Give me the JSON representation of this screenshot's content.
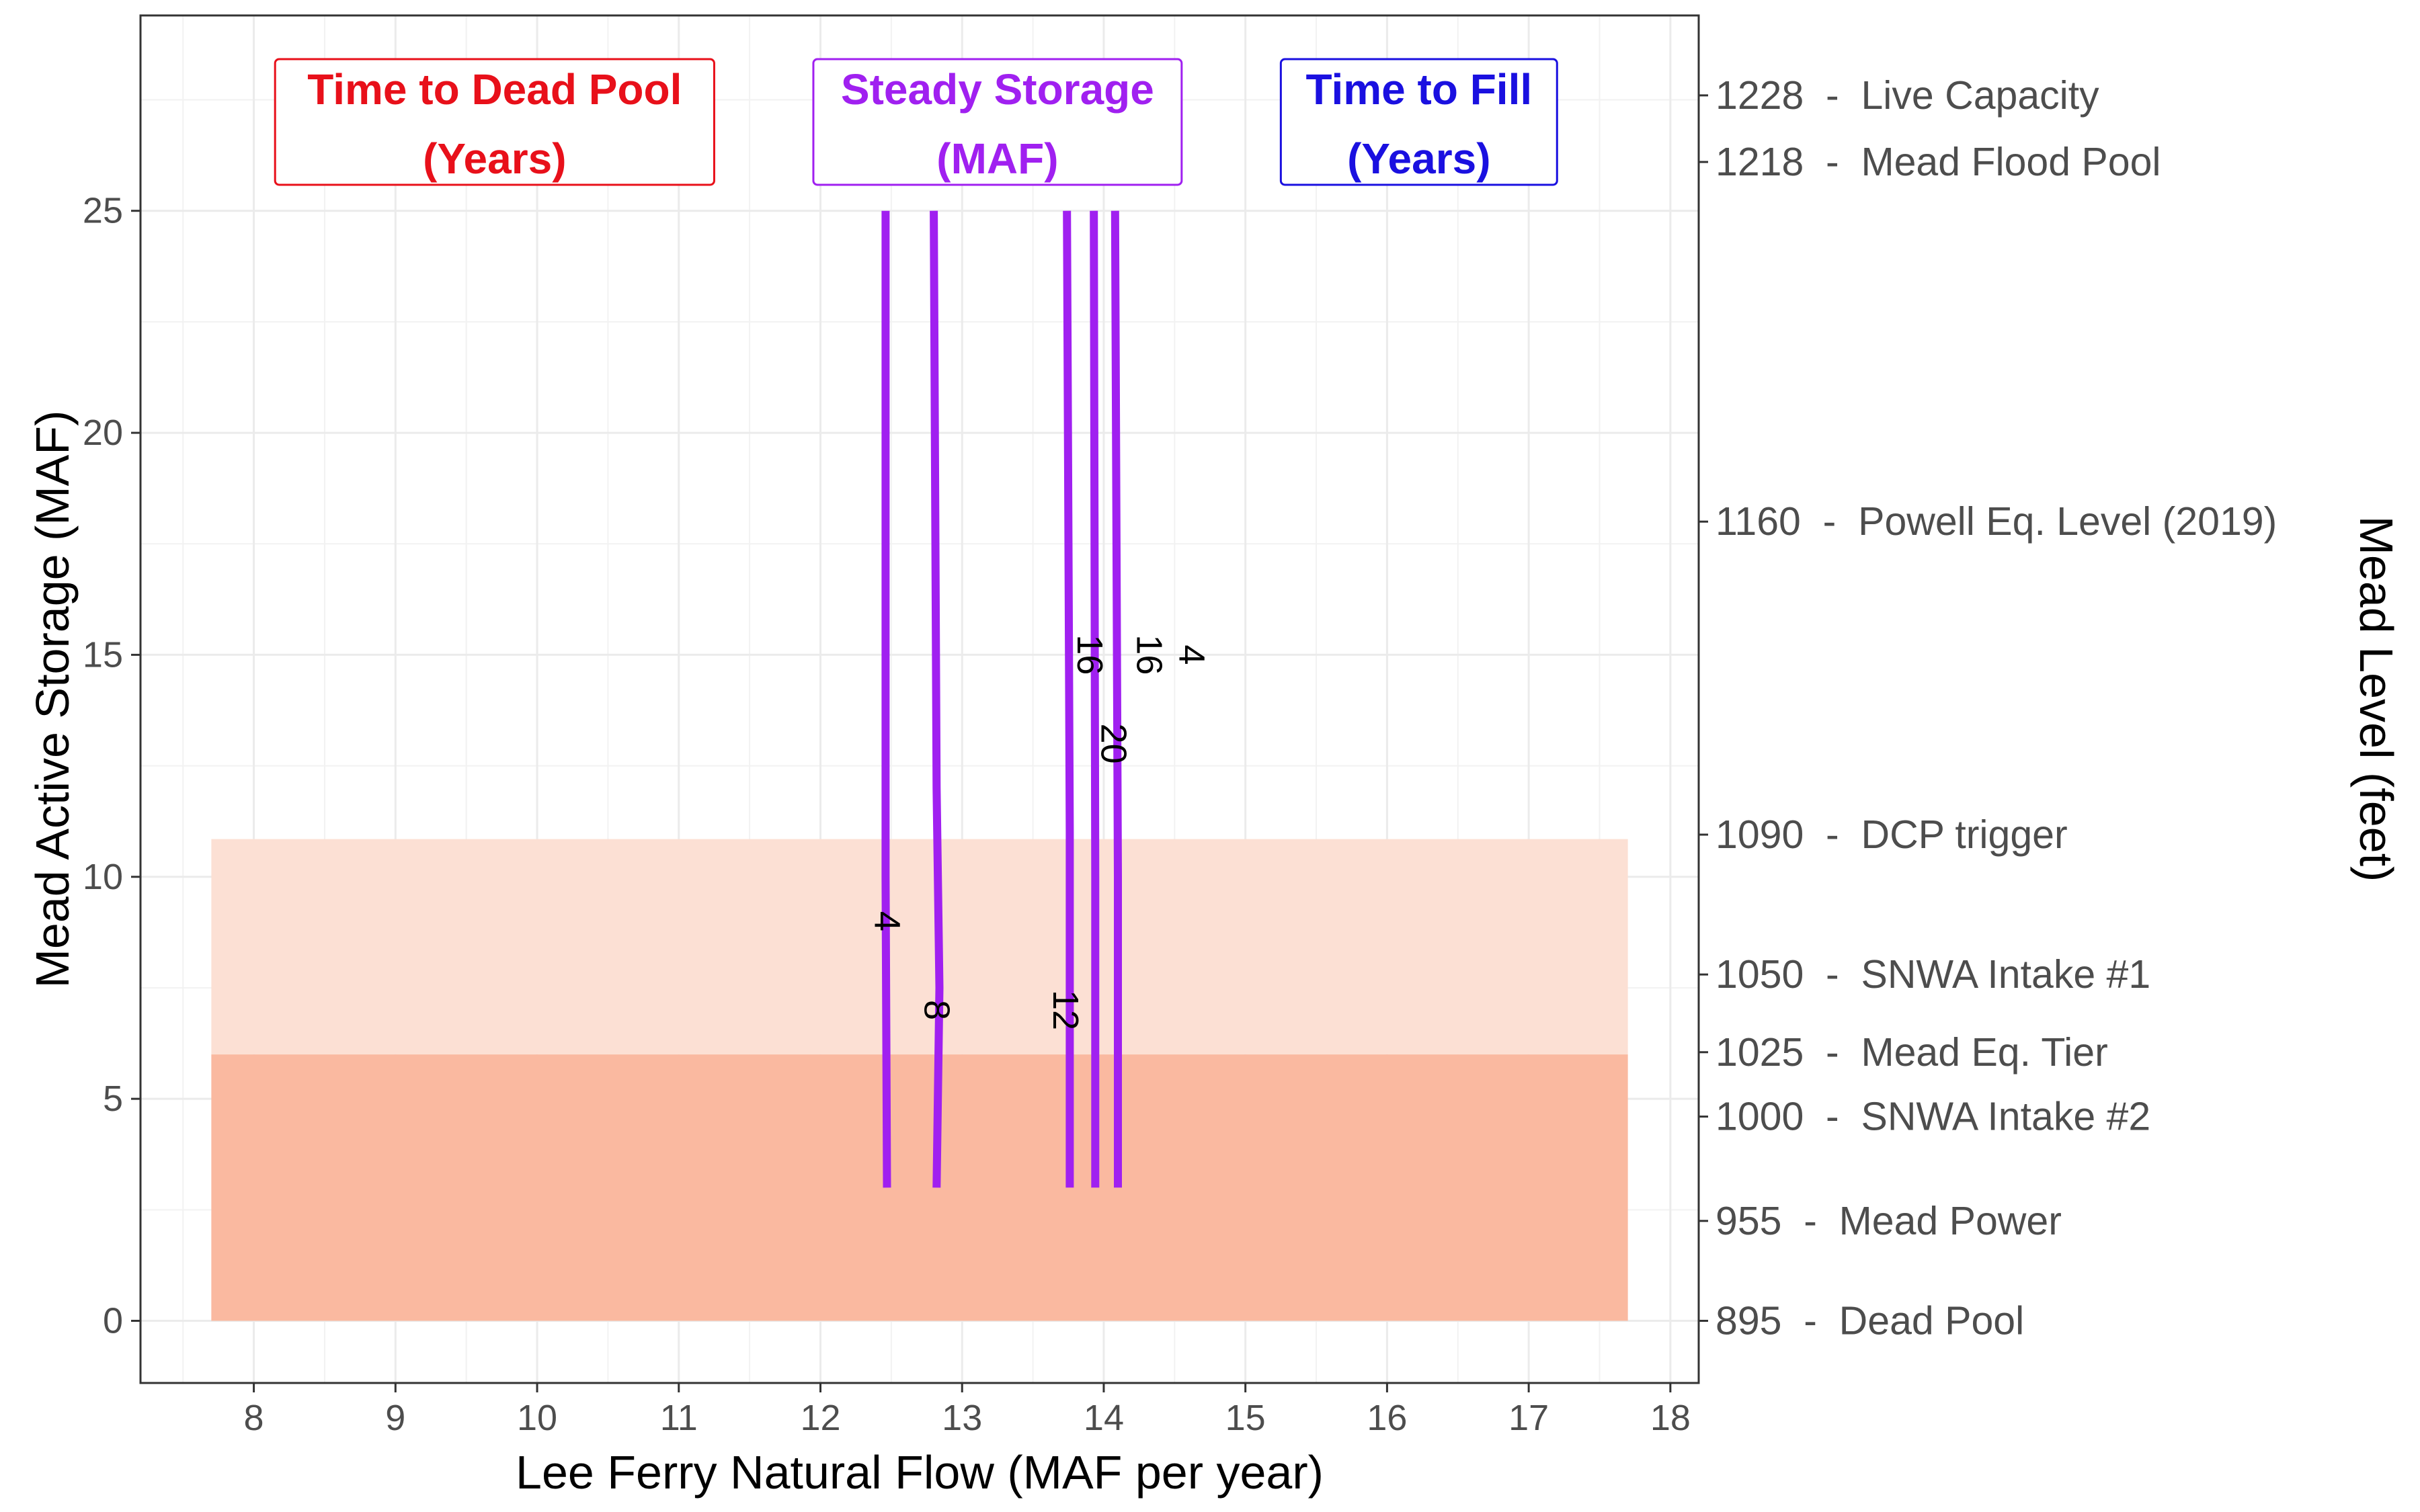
{
  "chart_data": {
    "type": "line",
    "xlabel": "Lee Ferry Natural Flow  (MAF per year)",
    "ylabel": "Mead Active Storage (MAF)",
    "y2label": "Mead Level (feet)",
    "xlim": [
      7.2,
      18.2
    ],
    "ylim": [
      -1.4,
      29.4
    ],
    "x_ticks": [
      8,
      9,
      10,
      11,
      12,
      13,
      14,
      15,
      16,
      17,
      18
    ],
    "y_ticks": [
      0,
      5,
      10,
      15,
      20,
      25
    ],
    "grid": true,
    "regions": [
      {
        "x": [
          7.7,
          17.7
        ],
        "y": [
          0,
          6.0
        ],
        "color": "#fab9a0"
      },
      {
        "x": [
          7.7,
          17.7
        ],
        "y": [
          6.0,
          10.85
        ],
        "color": "#fce0d4"
      }
    ],
    "series_color": "#a020f0",
    "series": [
      {
        "label": "4",
        "points": [
          [
            12.47,
            3.0
          ],
          [
            12.46,
            10.0
          ],
          [
            12.46,
            25.0
          ]
        ]
      },
      {
        "label": "8",
        "points": [
          [
            12.82,
            3.0
          ],
          [
            12.84,
            7.5
          ],
          [
            12.82,
            12.0
          ],
          [
            12.8,
            25.0
          ]
        ]
      },
      {
        "label": "12",
        "points": [
          [
            13.76,
            3.0
          ],
          [
            13.76,
            7.0
          ],
          [
            13.76,
            11.0
          ],
          [
            13.74,
            25.0
          ]
        ]
      },
      {
        "label": "16",
        "points": [
          [
            13.94,
            3.0
          ],
          [
            13.94,
            10.0
          ],
          [
            13.93,
            25.0
          ]
        ]
      },
      {
        "label": "20",
        "points": [
          [
            14.1,
            3.0
          ],
          [
            14.1,
            10.0
          ],
          [
            14.08,
            25.0
          ]
        ]
      }
    ],
    "contour_labels": [
      {
        "text": "4",
        "x": 12.47,
        "y": 9.0
      },
      {
        "text": "8",
        "x": 12.82,
        "y": 7.0
      },
      {
        "text": "12",
        "x": 13.73,
        "y": 7.0
      },
      {
        "text": "16",
        "x": 13.9,
        "y": 15.0
      },
      {
        "text": "20",
        "x": 14.07,
        "y": 13.0
      },
      {
        "text": "16",
        "x": 14.32,
        "y": 15.0
      },
      {
        "text": "4",
        "x": 14.62,
        "y": 15.0
      }
    ],
    "annotations": [
      {
        "line1": "Time to Dead Pool",
        "line2": "(Years)",
        "color": "#e8101a",
        "x": [
          8.15,
          11.25
        ]
      },
      {
        "line1": "Steady Storage",
        "line2": "(MAF)",
        "color": "#a020f0",
        "x": [
          11.95,
          14.55
        ]
      },
      {
        "line1": "Time to Fill",
        "line2": "(Years)",
        "color": "#1a10e0",
        "x": [
          15.25,
          17.2
        ]
      }
    ],
    "right_axis": [
      {
        "y": 27.6,
        "label": "1228  -  Live Capacity"
      },
      {
        "y": 26.1,
        "label": "1218  -  Mead Flood Pool"
      },
      {
        "y": 18.0,
        "label": "1160  -  Powell Eq. Level (2019)"
      },
      {
        "y": 10.95,
        "label": "1090  -  DCP trigger"
      },
      {
        "y": 7.8,
        "label": "1050  -  SNWA Intake #1"
      },
      {
        "y": 6.05,
        "label": "1025  -  Mead Eq. Tier"
      },
      {
        "y": 4.6,
        "label": "1000  -  SNWA Intake #2"
      },
      {
        "y": 2.25,
        "label": "955  -  Mead Power"
      },
      {
        "y": 0.0,
        "label": "895  -  Dead Pool"
      }
    ]
  }
}
